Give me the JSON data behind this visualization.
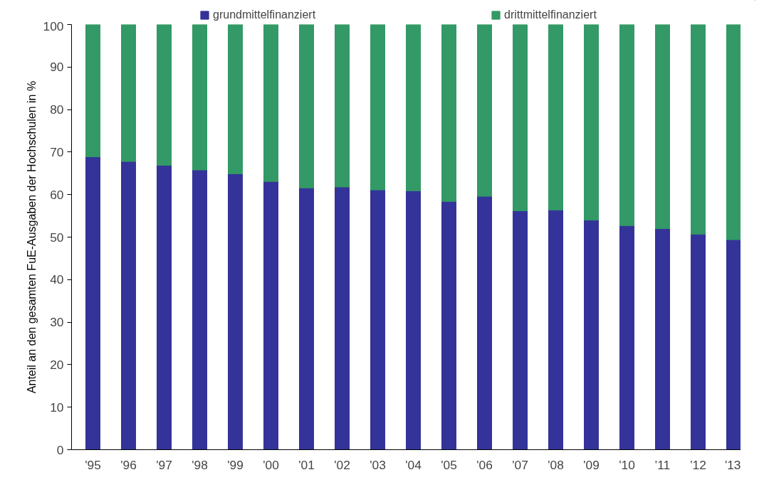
{
  "chart_data": {
    "type": "bar",
    "stacked": true,
    "ylabel": "Anteil an den gesamten FuE-Ausgaben der Hochschulen in %",
    "categories": [
      "'95",
      "'96",
      "'97",
      "'98",
      "'99",
      "'00",
      "'01",
      "'02",
      "'03",
      "'04",
      "'05",
      "'06",
      "'07",
      "'08",
      "'09",
      "'10",
      "'11",
      "'12",
      "'13"
    ],
    "series": [
      {
        "name": "grundmittelfinanziert",
        "color": "#333399",
        "values": [
          68.9,
          67.8,
          66.9,
          65.8,
          64.9,
          63.1,
          61.6,
          61.8,
          61.1,
          60.9,
          58.4,
          59.6,
          56.2,
          56.4,
          54.0,
          52.7,
          52.0,
          50.7,
          49.4
        ]
      },
      {
        "name": "drittmittelfinanziert",
        "color": "#339966",
        "values": [
          31.1,
          32.2,
          33.1,
          34.2,
          35.1,
          36.9,
          38.4,
          38.2,
          38.9,
          39.1,
          41.6,
          40.4,
          43.8,
          43.6,
          46.0,
          47.3,
          48.0,
          49.3,
          50.6
        ]
      }
    ],
    "ylim": [
      0,
      100
    ],
    "yticks": [
      0,
      10,
      20,
      30,
      40,
      50,
      60,
      70,
      80,
      90,
      100
    ],
    "grid": false,
    "legend": "top"
  }
}
